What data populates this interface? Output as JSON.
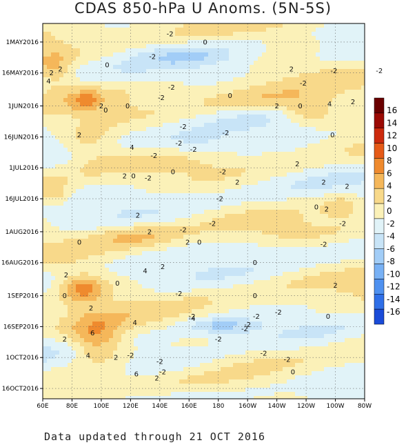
{
  "title": "CDAS 850-hPa U Anoms. (5N-5S)",
  "footer": "Data updated through 21 OCT 2016",
  "colors": {
    "level_fills": [
      "#1a4bd8",
      "#2f6fe8",
      "#4f91f0",
      "#78b1f5",
      "#a2cdf7",
      "#c8e4f7",
      "#e1f3f8",
      "#fbf1b8",
      "#f8d98a",
      "#f5b75a",
      "#ef8a2e",
      "#e55a17",
      "#cc2a0d",
      "#9b0a04",
      "#6a0000"
    ]
  },
  "chart_data": {
    "type": "heatmap",
    "title": "CDAS 850-hPa U Anoms. (5N-5S)",
    "x_ticks": [
      "60E",
      "80E",
      "100E",
      "120E",
      "140E",
      "160E",
      "180",
      "160W",
      "140W",
      "120W",
      "100W",
      "80W"
    ],
    "y_ticks": [
      "1MAY2016",
      "16MAY2016",
      "1JUN2016",
      "16JUN2016",
      "1JUL2016",
      "16JUL2016",
      "1AUG2016",
      "16AUG2016",
      "1SEP2016",
      "16SEP2016",
      "1OCT2016",
      "16OCT2016"
    ],
    "colorbar_levels": [
      16,
      14,
      12,
      10,
      8,
      6,
      4,
      2,
      0,
      -2,
      -4,
      -6,
      -8,
      -10,
      -12,
      -14,
      -16
    ],
    "contour_labels": [
      {
        "text": "-2",
        "lon": 147,
        "day": "2016-04-27"
      },
      {
        "text": "-2",
        "lon": 135,
        "day": "2016-05-08"
      },
      {
        "text": "0",
        "lon": 171,
        "day": "2016-05-01"
      },
      {
        "text": "0",
        "lon": 104,
        "day": "2016-05-12"
      },
      {
        "text": "2",
        "lon": 72,
        "day": "2016-05-14"
      },
      {
        "text": "2",
        "lon": 230,
        "day": "2016-05-14"
      },
      {
        "text": "-2",
        "lon": 259,
        "day": "2016-05-15"
      },
      {
        "text": "-2",
        "lon": 290,
        "day": "2016-05-15"
      },
      {
        "text": "4",
        "lon": 64,
        "day": "2016-05-20"
      },
      {
        "text": "2",
        "lon": 66,
        "day": "2016-05-16"
      },
      {
        "text": "-2",
        "lon": 238,
        "day": "2016-05-21"
      },
      {
        "text": "-2",
        "lon": 148,
        "day": "2016-05-23"
      },
      {
        "text": "0",
        "lon": 188,
        "day": "2016-05-27"
      },
      {
        "text": "-2",
        "lon": 141,
        "day": "2016-05-28"
      },
      {
        "text": "2",
        "lon": 220,
        "day": "2016-06-01"
      },
      {
        "text": "0",
        "lon": 236,
        "day": "2016-06-01"
      },
      {
        "text": "4",
        "lon": 256,
        "day": "2016-05-31"
      },
      {
        "text": "2",
        "lon": 272,
        "day": "2016-05-30"
      },
      {
        "text": "2",
        "lon": 100,
        "day": "2016-06-01"
      },
      {
        "text": "0",
        "lon": 118,
        "day": "2016-06-01"
      },
      {
        "text": "0",
        "lon": 103,
        "day": "2016-06-03"
      },
      {
        "text": "-2",
        "lon": 156,
        "day": "2016-06-11"
      },
      {
        "text": "-2",
        "lon": 185,
        "day": "2016-06-14"
      },
      {
        "text": "0",
        "lon": 258,
        "day": "2016-06-15"
      },
      {
        "text": "2",
        "lon": 85,
        "day": "2016-06-15"
      },
      {
        "text": "4",
        "lon": 121,
        "day": "2016-06-21"
      },
      {
        "text": "-2",
        "lon": 153,
        "day": "2016-06-19"
      },
      {
        "text": "-2",
        "lon": 163,
        "day": "2016-06-22"
      },
      {
        "text": "-2",
        "lon": 136,
        "day": "2016-06-25"
      },
      {
        "text": "2",
        "lon": 234,
        "day": "2016-06-29"
      },
      {
        "text": "0",
        "lon": 288,
        "day": "2016-06-30"
      },
      {
        "text": "0",
        "lon": 149,
        "day": "2016-07-03"
      },
      {
        "text": "-2",
        "lon": 183,
        "day": "2016-07-03"
      },
      {
        "text": "2",
        "lon": 116,
        "day": "2016-07-05"
      },
      {
        "text": "0",
        "lon": 122,
        "day": "2016-07-05"
      },
      {
        "text": "-2",
        "lon": 132,
        "day": "2016-07-06"
      },
      {
        "text": "2",
        "lon": 193,
        "day": "2016-07-08"
      },
      {
        "text": "2",
        "lon": 252,
        "day": "2016-07-08"
      },
      {
        "text": "2",
        "lon": 268,
        "day": "2016-07-10"
      },
      {
        "text": "-2",
        "lon": 181,
        "day": "2016-07-16"
      },
      {
        "text": "0",
        "lon": 247,
        "day": "2016-07-20"
      },
      {
        "text": "2",
        "lon": 254,
        "day": "2016-07-21"
      },
      {
        "text": "2",
        "lon": 125,
        "day": "2016-07-24"
      },
      {
        "text": "-2",
        "lon": 176,
        "day": "2016-07-28"
      },
      {
        "text": "-2",
        "lon": 265,
        "day": "2016-07-28"
      },
      {
        "text": "-2",
        "lon": 156,
        "day": "2016-07-31"
      },
      {
        "text": "2",
        "lon": 133,
        "day": "2016-08-01"
      },
      {
        "text": "0",
        "lon": 85,
        "day": "2016-08-06"
      },
      {
        "text": "0",
        "lon": 167,
        "day": "2016-08-06"
      },
      {
        "text": "2",
        "lon": 159,
        "day": "2016-08-06"
      },
      {
        "text": "-2",
        "lon": 252,
        "day": "2016-08-07"
      },
      {
        "text": "2",
        "lon": 76,
        "day": "2016-08-22"
      },
      {
        "text": "4",
        "lon": 130,
        "day": "2016-08-20"
      },
      {
        "text": "2",
        "lon": 142,
        "day": "2016-08-18"
      },
      {
        "text": "0",
        "lon": 205,
        "day": "2016-08-16"
      },
      {
        "text": "0",
        "lon": 111,
        "day": "2016-08-26"
      },
      {
        "text": "2",
        "lon": 260,
        "day": "2016-08-27"
      },
      {
        "text": "-2",
        "lon": 153,
        "day": "2016-08-31"
      },
      {
        "text": "0",
        "lon": 75,
        "day": "2016-09-01"
      },
      {
        "text": "0",
        "lon": 205,
        "day": "2016-09-01"
      },
      {
        "text": "2",
        "lon": 93,
        "day": "2016-09-07"
      },
      {
        "text": "-2",
        "lon": 221,
        "day": "2016-09-09"
      },
      {
        "text": "-2",
        "lon": 162,
        "day": "2016-09-11"
      },
      {
        "text": "-2",
        "lon": 206,
        "day": "2016-09-11"
      },
      {
        "text": "0",
        "lon": 255,
        "day": "2016-09-11"
      },
      {
        "text": "4",
        "lon": 123,
        "day": "2016-09-14"
      },
      {
        "text": "-4",
        "lon": 162,
        "day": "2016-09-12"
      },
      {
        "text": "-2",
        "lon": 200,
        "day": "2016-09-15"
      },
      {
        "text": "-2",
        "lon": 198,
        "day": "2016-09-17"
      },
      {
        "text": "6",
        "lon": 94,
        "day": "2016-09-19"
      },
      {
        "text": "2",
        "lon": 75,
        "day": "2016-09-22"
      },
      {
        "text": "-2",
        "lon": 180,
        "day": "2016-09-22"
      },
      {
        "text": "4",
        "lon": 91,
        "day": "2016-09-30"
      },
      {
        "text": "-2",
        "lon": 120,
        "day": "2016-09-30"
      },
      {
        "text": "2",
        "lon": 110,
        "day": "2016-10-01"
      },
      {
        "text": "-2",
        "lon": 211,
        "day": "2016-09-29"
      },
      {
        "text": "6",
        "lon": 124,
        "day": "2016-10-09"
      },
      {
        "text": "-2",
        "lon": 140,
        "day": "2016-10-03"
      },
      {
        "text": "-2",
        "lon": 142,
        "day": "2016-10-08"
      },
      {
        "text": "2",
        "lon": 138,
        "day": "2016-10-11"
      },
      {
        "text": "-2",
        "lon": 227,
        "day": "2016-10-02"
      },
      {
        "text": "0",
        "lon": 231,
        "day": "2016-10-08"
      }
    ]
  }
}
